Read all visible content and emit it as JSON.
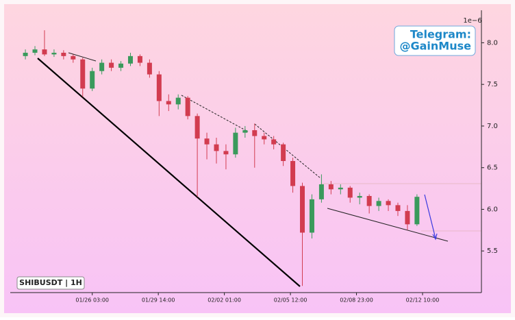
{
  "chart_data": {
    "type": "candlestick",
    "offset_label": "1e−6",
    "annotation_lines": [
      "Telegram:",
      "@GainMuse"
    ],
    "symbol_label": "SHIBUSDT | 1H",
    "x": [
      "01/22 15:00",
      "01/23 03:00",
      "01/23 15:00",
      "01/24 03:00",
      "01/24 15:00",
      "01/25 03:00",
      "01/25 15:00",
      "01/26 03:00",
      "01/26 15:00",
      "01/27 03:00",
      "01/27 15:00",
      "01/28 03:00",
      "01/28 15:00",
      "01/29 03:00",
      "01/29 15:00",
      "01/30 03:00",
      "01/30 15:00",
      "01/31 03:00",
      "01/31 15:00",
      "02/01 03:00",
      "02/01 15:00",
      "02/02 03:00",
      "02/02 15:00",
      "02/03 03:00",
      "02/03 15:00",
      "02/04 03:00",
      "02/04 15:00",
      "02/05 03:00",
      "02/05 15:00",
      "02/06 03:00",
      "02/06 15:00",
      "02/07 03:00",
      "02/07 15:00",
      "02/08 03:00",
      "02/08 15:00",
      "02/09 03:00",
      "02/09 15:00",
      "02/10 03:00",
      "02/10 15:00",
      "02/11 03:00",
      "02/11 15:00",
      "02/12 03:00"
    ],
    "open": [
      7.84,
      7.88,
      7.92,
      7.86,
      7.88,
      7.84,
      7.8,
      7.45,
      7.66,
      7.76,
      7.7,
      7.75,
      7.84,
      7.76,
      7.62,
      7.3,
      7.26,
      7.34,
      7.12,
      6.85,
      6.78,
      6.7,
      6.66,
      6.92,
      6.95,
      6.88,
      6.84,
      6.78,
      6.58,
      6.28,
      5.72,
      6.12,
      6.3,
      6.24,
      6.26,
      6.14,
      6.16,
      6.04,
      6.1,
      6.05,
      5.98,
      5.82
    ],
    "high": [
      7.92,
      7.96,
      8.15,
      7.92,
      7.91,
      7.86,
      7.82,
      7.7,
      7.8,
      7.8,
      7.78,
      7.88,
      7.86,
      7.8,
      7.66,
      7.38,
      7.38,
      7.36,
      7.15,
      6.92,
      6.86,
      6.78,
      6.98,
      7.0,
      7.03,
      6.92,
      6.88,
      6.8,
      6.62,
      6.32,
      6.18,
      6.42,
      6.34,
      6.3,
      6.28,
      6.2,
      6.18,
      6.14,
      6.12,
      6.08,
      6.05,
      6.18
    ],
    "low": [
      7.8,
      7.85,
      7.84,
      7.83,
      7.8,
      7.76,
      7.35,
      7.42,
      7.62,
      7.66,
      7.66,
      7.72,
      7.72,
      7.58,
      7.12,
      7.18,
      7.2,
      7.08,
      6.15,
      6.6,
      6.55,
      6.48,
      6.62,
      6.86,
      6.5,
      6.78,
      6.72,
      6.52,
      6.2,
      5.08,
      5.65,
      6.08,
      6.18,
      6.18,
      6.08,
      6.06,
      5.95,
      5.98,
      5.98,
      5.92,
      5.75,
      5.8
    ],
    "close": [
      7.88,
      7.92,
      7.86,
      7.88,
      7.84,
      7.8,
      7.45,
      7.66,
      7.76,
      7.7,
      7.75,
      7.84,
      7.76,
      7.62,
      7.3,
      7.26,
      7.34,
      7.12,
      6.85,
      6.78,
      6.7,
      6.66,
      6.92,
      6.95,
      6.88,
      6.84,
      6.78,
      6.58,
      6.28,
      5.72,
      6.12,
      6.3,
      6.24,
      6.26,
      6.14,
      6.16,
      6.04,
      6.1,
      6.05,
      5.98,
      5.82,
      6.15
    ],
    "up_color": "#3a9a5c",
    "down_color": "#d23c50",
    "xlim": [
      "01/21 20:00",
      "02/15 12:00"
    ],
    "xticks": [
      "01/26 03:00",
      "01/29 14:00",
      "02/02 01:00",
      "02/05 12:00",
      "02/08 23:00",
      "02/12 10:00"
    ],
    "ylim": [
      5.0,
      8.39
    ],
    "yticks": [
      5.5,
      {
        "value": 6,
        "label": "6.0"
      },
      6.5,
      {
        "value": 7,
        "label": "7.0"
      },
      7.5,
      {
        "value": 8,
        "label": "8.0"
      }
    ]
  }
}
